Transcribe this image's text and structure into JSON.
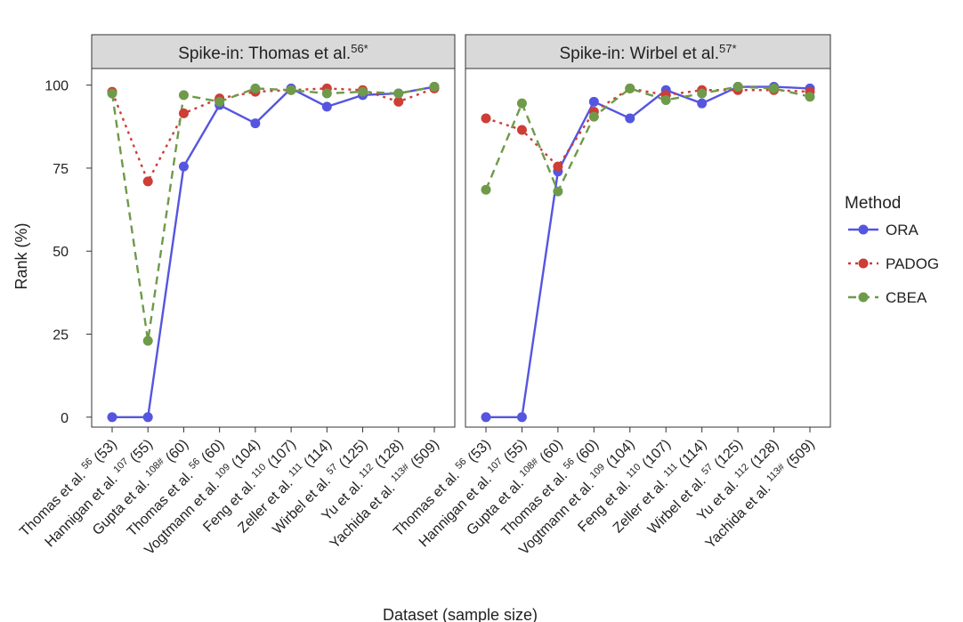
{
  "chart_data": {
    "type": "line",
    "x_label": "Dataset (sample size)",
    "y_label": "Rank (%)",
    "y_ticks": [
      0,
      25,
      50,
      75,
      100
    ],
    "ylim": [
      -3,
      105
    ],
    "grid": false,
    "legend": {
      "title": "Method",
      "placement": "right",
      "entries": [
        {
          "name": "ORA",
          "color": "#5555e0",
          "dash": "solid"
        },
        {
          "name": "PADOG",
          "color": "#cc3e36",
          "dash": "dotted"
        },
        {
          "name": "CBEA",
          "color": "#6e9a4a",
          "dash": "dashed"
        }
      ]
    },
    "categories": [
      {
        "name": "Thomas et al.",
        "sup": "56",
        "size": "(53)"
      },
      {
        "name": "Hannigan et al.",
        "sup": "107",
        "size": "(55)"
      },
      {
        "name": "Gupta et al.",
        "sup": "108#",
        "size": "(60)"
      },
      {
        "name": "Thomas et al.",
        "sup": "56",
        "size": "(60)"
      },
      {
        "name": "Vogtmann et al.",
        "sup": "109",
        "size": "(104)"
      },
      {
        "name": "Feng et al.",
        "sup": "110",
        "size": "(107)"
      },
      {
        "name": "Zeller et al.",
        "sup": "111",
        "size": "(114)"
      },
      {
        "name": "Wirbel et al.",
        "sup": "57",
        "size": "(125)"
      },
      {
        "name": "Yu et al.",
        "sup": "112",
        "size": "(128)"
      },
      {
        "name": "Yachida et al.",
        "sup": "113#",
        "size": "(509)"
      }
    ],
    "panels": [
      {
        "strip": "Spike-in: Thomas et al.",
        "strip_sup": "56*",
        "series": [
          {
            "name": "ORA",
            "values": [
              0,
              0,
              75.5,
              94,
              88.5,
              99,
              93.5,
              97,
              97.5,
              99.5
            ]
          },
          {
            "name": "PADOG",
            "values": [
              98,
              71,
              91.5,
              96,
              98,
              98.5,
              99,
              98.5,
              95,
              99
            ]
          },
          {
            "name": "CBEA",
            "values": [
              97.5,
              23,
              97,
              95,
              99,
              98.5,
              97.5,
              98,
              97.5,
              99.5
            ]
          }
        ]
      },
      {
        "strip": "Spike-in: Wirbel et al.",
        "strip_sup": "57*",
        "series": [
          {
            "name": "ORA",
            "values": [
              0,
              0,
              74,
              95,
              90,
              98.5,
              94.5,
              99.5,
              99.5,
              99
            ]
          },
          {
            "name": "PADOG",
            "values": [
              90,
              86.5,
              75.5,
              92,
              99,
              97,
              98.5,
              98.5,
              98.5,
              98
            ]
          },
          {
            "name": "CBEA",
            "values": [
              68.5,
              94.5,
              68,
              90.5,
              99,
              95.5,
              97.5,
              99.5,
              99,
              96.5
            ]
          }
        ]
      }
    ]
  }
}
